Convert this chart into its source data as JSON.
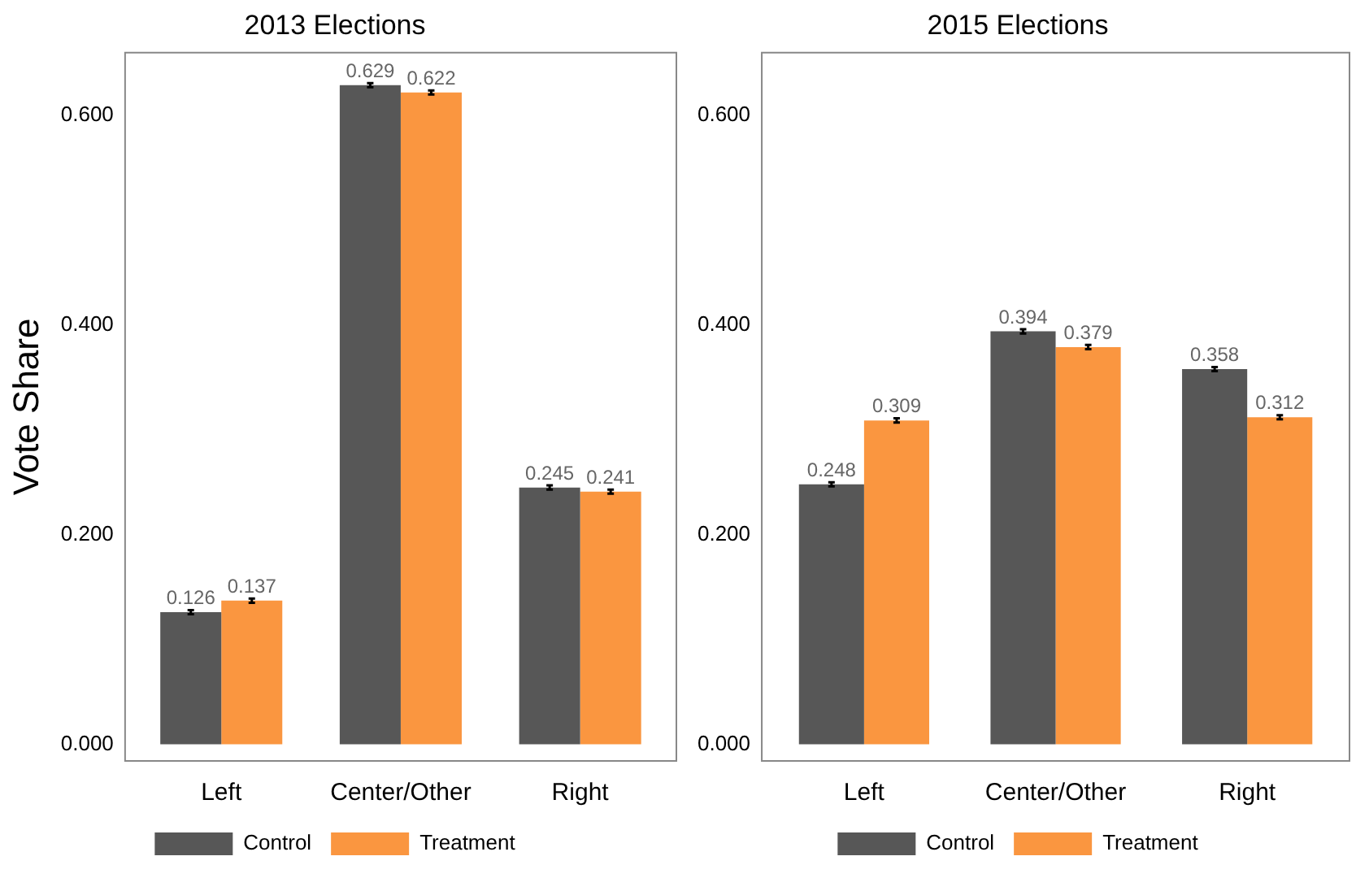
{
  "chart_data": [
    {
      "type": "bar",
      "title": "2013 Elections",
      "ylabel": "Vote Share",
      "categories": [
        "Left",
        "Center/Other",
        "Right"
      ],
      "series": [
        {
          "name": "Control",
          "color": "#575757",
          "values": [
            0.126,
            0.629,
            0.245
          ],
          "errors": [
            0.002,
            0.002,
            0.002
          ]
        },
        {
          "name": "Treatment",
          "color": "#fa9640",
          "values": [
            0.137,
            0.622,
            0.241
          ],
          "errors": [
            0.002,
            0.002,
            0.002
          ]
        }
      ],
      "ylim": [
        -0.016,
        0.66
      ],
      "yticks": [
        {
          "value": 0,
          "label": "0.000"
        },
        {
          "value": 0.2,
          "label": "0.200"
        },
        {
          "value": 0.4,
          "label": "0.400"
        },
        {
          "value": 0.6,
          "label": "0.600"
        }
      ],
      "data_labels": true,
      "grid": false,
      "legend": "bottom"
    },
    {
      "type": "bar",
      "title": "2015 Elections",
      "categories": [
        "Left",
        "Center/Other",
        "Right"
      ],
      "series": [
        {
          "name": "Control",
          "color": "#575757",
          "values": [
            0.248,
            0.394,
            0.358
          ],
          "errors": [
            0.002,
            0.002,
            0.002
          ]
        },
        {
          "name": "Treatment",
          "color": "#fa9640",
          "values": [
            0.309,
            0.379,
            0.312
          ],
          "errors": [
            0.002,
            0.002,
            0.002
          ]
        }
      ],
      "ylim": [
        -0.016,
        0.66
      ],
      "yticks": [
        {
          "value": 0,
          "label": "0.000"
        },
        {
          "value": 0.2,
          "label": "0.200"
        },
        {
          "value": 0.4,
          "label": "0.400"
        },
        {
          "value": 0.6,
          "label": "0.600"
        }
      ],
      "data_labels": true,
      "grid": false,
      "legend": "bottom"
    }
  ]
}
